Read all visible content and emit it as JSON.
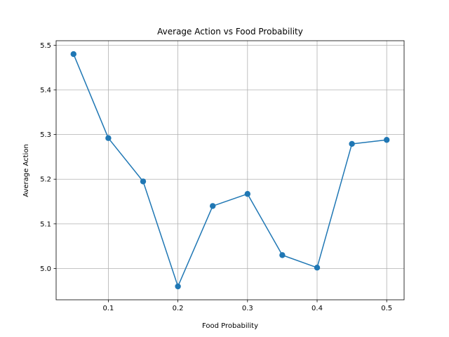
{
  "chart_data": {
    "type": "line",
    "title": "Average Action vs Food Probability",
    "xlabel": "Food Probability",
    "ylabel": "Average Action",
    "xlim": [
      0.025,
      0.525
    ],
    "ylim": [
      4.93,
      5.51
    ],
    "xticks": [
      0.1,
      0.2,
      0.3,
      0.4,
      0.5
    ],
    "xtick_labels": [
      "0.1",
      "0.2",
      "0.3",
      "0.4",
      "0.5"
    ],
    "yticks": [
      5.0,
      5.1,
      5.2,
      5.3,
      5.4,
      5.5
    ],
    "ytick_labels": [
      "5.0",
      "5.1",
      "5.2",
      "5.3",
      "5.4",
      "5.5"
    ],
    "grid": true,
    "series": [
      {
        "color": "#1f77b4",
        "marker": "circle",
        "x": [
          0.05,
          0.1,
          0.15,
          0.2,
          0.25,
          0.3,
          0.35,
          0.4,
          0.45,
          0.5
        ],
        "y": [
          5.48,
          5.292,
          5.195,
          4.96,
          5.14,
          5.167,
          5.03,
          5.002,
          5.279,
          5.288
        ]
      }
    ]
  }
}
